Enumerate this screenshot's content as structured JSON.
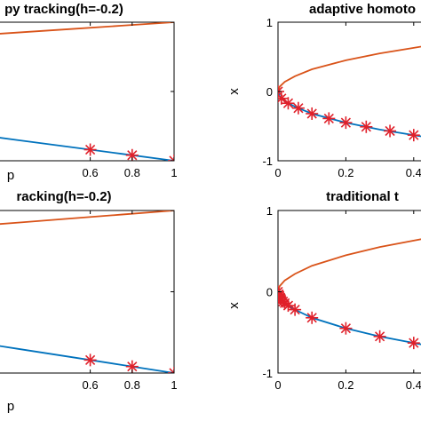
{
  "chart_data": [
    {
      "type": "line",
      "title": "py tracking(h=-0.2)",
      "xlabel": "p",
      "ylabel": "",
      "xlim": [
        0,
        1
      ],
      "ylim": [
        -1,
        1
      ],
      "x_ticks": [
        "0.6",
        "0.8",
        "1"
      ],
      "y_ticks": [],
      "series": [
        {
          "color": "#D95319",
          "x": [
            0,
            0.25,
            0.5,
            0.75,
            1
          ],
          "y": [
            0.8,
            0.85,
            0.9,
            0.95,
            1
          ]
        },
        {
          "color": "#0072BD",
          "x": [
            0,
            0.25,
            0.5,
            0.75,
            1
          ],
          "y": [
            -0.6,
            -0.7,
            -0.8,
            -0.9,
            -1
          ]
        }
      ],
      "markers": {
        "color": "#E0202A",
        "symbol": "asterisk",
        "x": [
          0.6,
          0.8,
          1
        ],
        "y": [
          -0.84,
          -0.92,
          -1
        ]
      }
    },
    {
      "type": "line",
      "title": "adaptive homoto",
      "xlabel": "",
      "ylabel": "x",
      "xlim": [
        0,
        0.5
      ],
      "ylim": [
        -1,
        1
      ],
      "x_ticks": [
        "0",
        "0.2",
        "0.4"
      ],
      "y_ticks": [
        "-1",
        "0",
        "1"
      ],
      "series": [
        {
          "color": "#D95319",
          "x": [
            0,
            0.005,
            0.02,
            0.05,
            0.1,
            0.2,
            0.3,
            0.4,
            0.5
          ],
          "y": [
            0,
            0.07,
            0.14,
            0.22,
            0.32,
            0.45,
            0.55,
            0.63,
            0.71
          ]
        },
        {
          "color": "#0072BD",
          "x": [
            0,
            0.005,
            0.02,
            0.05,
            0.1,
            0.2,
            0.3,
            0.4,
            0.5
          ],
          "y": [
            0,
            -0.07,
            -0.14,
            -0.22,
            -0.32,
            -0.45,
            -0.55,
            -0.63,
            -0.71
          ]
        }
      ],
      "markers": {
        "color": "#E0202A",
        "symbol": "asterisk",
        "x": [
          0,
          0.01,
          0.03,
          0.06,
          0.1,
          0.15,
          0.2,
          0.26,
          0.33,
          0.4,
          0.46
        ],
        "y": [
          0,
          -0.1,
          -0.17,
          -0.24,
          -0.32,
          -0.39,
          -0.45,
          -0.51,
          -0.57,
          -0.63,
          -0.68
        ]
      }
    },
    {
      "type": "line",
      "title": "racking(h=-0.2)",
      "xlabel": "p",
      "ylabel": "",
      "xlim": [
        0,
        1
      ],
      "ylim": [
        -1,
        1
      ],
      "x_ticks": [
        "0.6",
        "0.8",
        "1"
      ],
      "y_ticks": [],
      "series": [
        {
          "color": "#D95319",
          "x": [
            0,
            0.25,
            0.5,
            0.75,
            1
          ],
          "y": [
            0.8,
            0.85,
            0.9,
            0.95,
            1
          ]
        },
        {
          "color": "#0072BD",
          "x": [
            0,
            0.25,
            0.5,
            0.75,
            1
          ],
          "y": [
            -0.6,
            -0.7,
            -0.8,
            -0.9,
            -1
          ]
        }
      ],
      "markers": {
        "color": "#E0202A",
        "symbol": "asterisk",
        "x": [
          0.6,
          0.8,
          1
        ],
        "y": [
          -0.84,
          -0.92,
          -1
        ]
      }
    },
    {
      "type": "line",
      "title": "traditional t",
      "xlabel": "",
      "ylabel": "x",
      "xlim": [
        0,
        0.5
      ],
      "ylim": [
        -1,
        1
      ],
      "x_ticks": [
        "0",
        "0.2",
        "0.4"
      ],
      "y_ticks": [
        "-1",
        "0",
        "1"
      ],
      "series": [
        {
          "color": "#D95319",
          "x": [
            0,
            0.005,
            0.02,
            0.05,
            0.1,
            0.2,
            0.3,
            0.4,
            0.5
          ],
          "y": [
            0,
            0.07,
            0.14,
            0.22,
            0.32,
            0.45,
            0.55,
            0.63,
            0.71
          ]
        },
        {
          "color": "#0072BD",
          "x": [
            0,
            0.005,
            0.02,
            0.05,
            0.1,
            0.2,
            0.3,
            0.4,
            0.5
          ],
          "y": [
            0,
            -0.07,
            -0.14,
            -0.22,
            -0.32,
            -0.45,
            -0.55,
            -0.63,
            -0.71
          ]
        }
      ],
      "markers": {
        "color": "#E0202A",
        "symbol": "asterisk",
        "x": [
          0,
          0.002,
          0.004,
          0.006,
          0.008,
          0.01,
          0.015,
          0.02,
          0.03,
          0.05,
          0.1,
          0.2,
          0.3,
          0.4
        ],
        "y": [
          0,
          -0.03,
          -0.05,
          -0.07,
          -0.08,
          -0.1,
          -0.12,
          -0.14,
          -0.17,
          -0.22,
          -0.32,
          -0.45,
          -0.55,
          -0.63
        ]
      }
    }
  ]
}
